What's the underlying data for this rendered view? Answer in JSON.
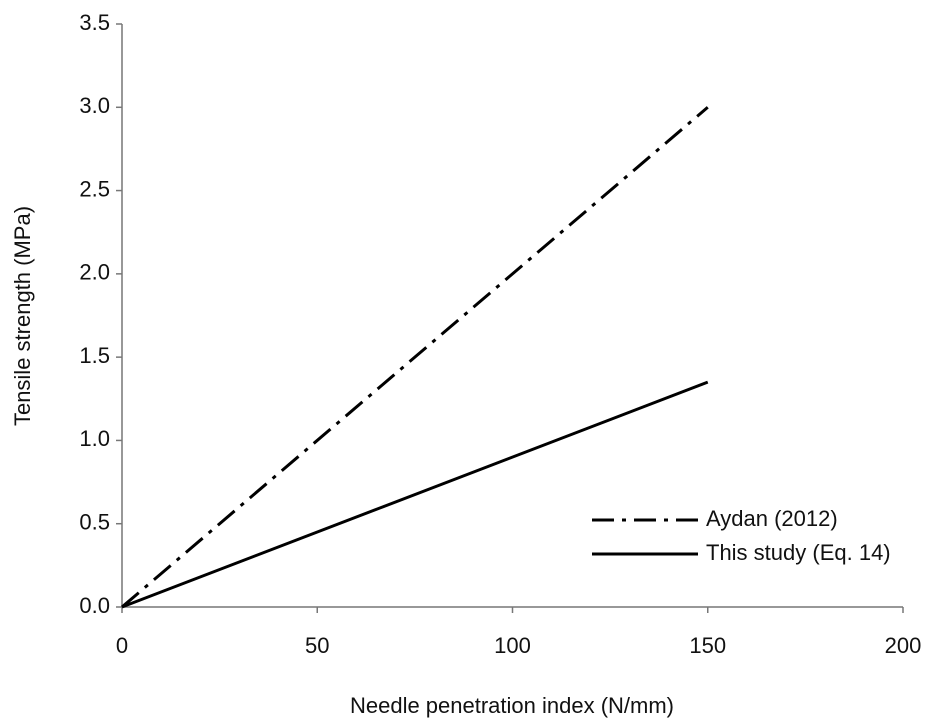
{
  "chart_data": {
    "type": "line",
    "x_label": "Needle penetration index (N/mm)",
    "y_label": "Tensile strength (MPa)",
    "x": [
      0,
      150
    ],
    "series": [
      {
        "name": "Aydan (2012)",
        "color": "#000000",
        "linestyle": "dashdot",
        "values": [
          0,
          3.0
        ]
      },
      {
        "name": "This study (Eq. 14)",
        "color": "#000000",
        "linestyle": "solid",
        "values": [
          0,
          1.35
        ]
      }
    ],
    "xlim": [
      0,
      200
    ],
    "xticks": [
      0,
      50,
      100,
      150,
      200
    ],
    "ylim": [
      0,
      3.5
    ],
    "yticks": [
      {
        "value": 0,
        "label": "0.0"
      },
      0.5,
      {
        "value": 1,
        "label": "1.0"
      },
      1.5,
      {
        "value": 2,
        "label": "2.0"
      },
      2.5,
      {
        "value": 3,
        "label": "3.0"
      },
      3.5
    ],
    "grid": false,
    "legend": "lower right"
  }
}
